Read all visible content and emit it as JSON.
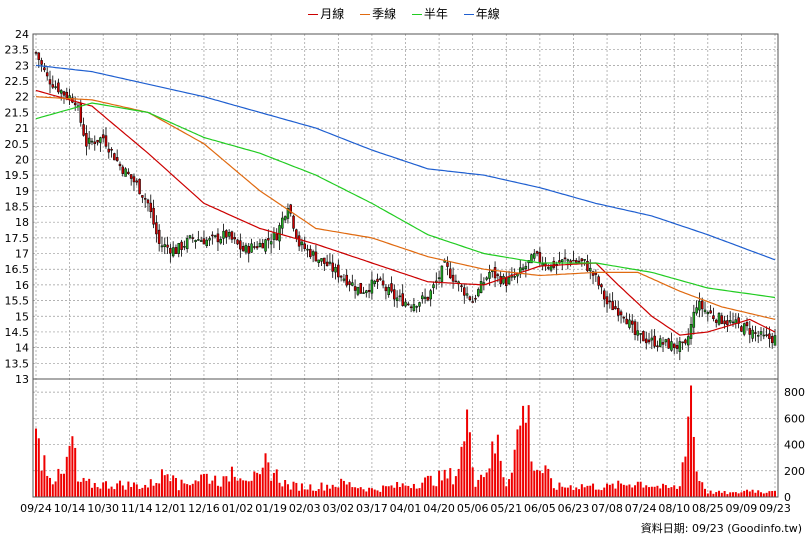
{
  "legend": [
    {
      "label": "月線",
      "color": "#cc0000"
    },
    {
      "label": "季線",
      "color": "#e06a10"
    },
    {
      "label": "半年",
      "color": "#22cc22"
    },
    {
      "label": "年線",
      "color": "#1f5fd0"
    }
  ],
  "source_label": "資料日期: 09/23  (Goodinfo.tw)",
  "colors": {
    "up_candle": "#22aa22",
    "down_candle": "#cc0000",
    "volume": "#ee0000",
    "grid": "#999999"
  },
  "chart_data": {
    "type": "candlestick",
    "price_axis": {
      "min": 13,
      "max": 24,
      "ticks": [
        "13",
        "13.5",
        "14",
        "14.5",
        "15",
        "15.5",
        "16",
        "16.5",
        "17",
        "17.5",
        "18",
        "18.5",
        "19",
        "19.5",
        "20",
        "20.5",
        "21",
        "21.5",
        "22",
        "22.5",
        "23",
        "23.5",
        "24"
      ]
    },
    "volume_axis": {
      "min": 0,
      "max": 900,
      "ticks": [
        "0",
        "200",
        "400",
        "600",
        "800"
      ]
    },
    "x_tick_labels": [
      "09/24",
      "10/14",
      "10/30",
      "11/14",
      "12/01",
      "12/16",
      "01/02",
      "01/19",
      "02/03",
      "03/02",
      "03/17",
      "04/01",
      "04/20",
      "05/06",
      "05/21",
      "06/05",
      "06/23",
      "07/08",
      "07/24",
      "08/10",
      "08/25",
      "09/09",
      "09/23"
    ],
    "close_keypoints": [
      [
        0,
        23.4
      ],
      [
        4,
        22.6
      ],
      [
        10,
        22.1
      ],
      [
        14,
        21.9
      ],
      [
        18,
        20.5
      ],
      [
        24,
        20.7
      ],
      [
        30,
        19.8
      ],
      [
        36,
        19.2
      ],
      [
        40,
        18.6
      ],
      [
        44,
        17.3
      ],
      [
        50,
        17.1
      ],
      [
        56,
        17.5
      ],
      [
        62,
        17.4
      ],
      [
        68,
        17.6
      ],
      [
        74,
        17.1
      ],
      [
        80,
        17.3
      ],
      [
        86,
        17.6
      ],
      [
        90,
        18.6
      ],
      [
        94,
        17.3
      ],
      [
        100,
        16.9
      ],
      [
        106,
        16.5
      ],
      [
        112,
        16.1
      ],
      [
        116,
        15.8
      ],
      [
        122,
        16.1
      ],
      [
        128,
        15.6
      ],
      [
        134,
        15.4
      ],
      [
        140,
        15.6
      ],
      [
        146,
        16.6
      ],
      [
        152,
        15.9
      ],
      [
        156,
        15.5
      ],
      [
        162,
        16.4
      ],
      [
        168,
        16.1
      ],
      [
        172,
        16.3
      ],
      [
        178,
        16.9
      ],
      [
        184,
        16.6
      ],
      [
        190,
        16.8
      ],
      [
        196,
        16.7
      ],
      [
        200,
        16.2
      ],
      [
        204,
        15.4
      ],
      [
        210,
        15.1
      ],
      [
        214,
        14.4
      ],
      [
        220,
        14.2
      ],
      [
        226,
        14.1
      ],
      [
        232,
        14.0
      ],
      [
        236,
        15.4
      ],
      [
        242,
        15.0
      ],
      [
        248,
        14.8
      ],
      [
        254,
        14.6
      ],
      [
        260,
        14.3
      ],
      [
        264,
        14.3
      ]
    ],
    "ma": {
      "月線": [
        [
          0,
          22.2
        ],
        [
          20,
          21.7
        ],
        [
          40,
          20.2
        ],
        [
          60,
          18.6
        ],
        [
          80,
          17.8
        ],
        [
          100,
          17.3
        ],
        [
          120,
          16.7
        ],
        [
          140,
          16.1
        ],
        [
          160,
          16.0
        ],
        [
          180,
          16.6
        ],
        [
          200,
          16.7
        ],
        [
          208,
          16.0
        ],
        [
          220,
          15.0
        ],
        [
          230,
          14.4
        ],
        [
          240,
          14.5
        ],
        [
          255,
          14.9
        ],
        [
          264,
          14.5
        ]
      ],
      "季線": [
        [
          0,
          22.0
        ],
        [
          20,
          21.9
        ],
        [
          40,
          21.5
        ],
        [
          60,
          20.5
        ],
        [
          80,
          19.0
        ],
        [
          100,
          17.8
        ],
        [
          120,
          17.5
        ],
        [
          140,
          16.9
        ],
        [
          160,
          16.5
        ],
        [
          180,
          16.3
        ],
        [
          200,
          16.4
        ],
        [
          215,
          16.4
        ],
        [
          230,
          15.8
        ],
        [
          245,
          15.3
        ],
        [
          264,
          14.9
        ]
      ],
      "半年": [
        [
          0,
          21.3
        ],
        [
          20,
          21.8
        ],
        [
          40,
          21.5
        ],
        [
          60,
          20.7
        ],
        [
          80,
          20.2
        ],
        [
          100,
          19.5
        ],
        [
          120,
          18.6
        ],
        [
          140,
          17.6
        ],
        [
          160,
          17.0
        ],
        [
          180,
          16.7
        ],
        [
          200,
          16.7
        ],
        [
          220,
          16.4
        ],
        [
          240,
          15.9
        ],
        [
          264,
          15.6
        ]
      ],
      "年線": [
        [
          0,
          23.0
        ],
        [
          20,
          22.8
        ],
        [
          40,
          22.4
        ],
        [
          60,
          22.0
        ],
        [
          80,
          21.5
        ],
        [
          100,
          21.0
        ],
        [
          120,
          20.3
        ],
        [
          140,
          19.7
        ],
        [
          160,
          19.5
        ],
        [
          180,
          19.1
        ],
        [
          200,
          18.6
        ],
        [
          220,
          18.2
        ],
        [
          240,
          17.6
        ],
        [
          264,
          16.8
        ]
      ]
    },
    "volume_keypoints": [
      [
        0,
        440
      ],
      [
        3,
        300
      ],
      [
        6,
        150
      ],
      [
        10,
        170
      ],
      [
        13,
        460
      ],
      [
        15,
        120
      ],
      [
        20,
        100
      ],
      [
        30,
        100
      ],
      [
        40,
        90
      ],
      [
        50,
        250
      ],
      [
        51,
        90
      ],
      [
        60,
        170
      ],
      [
        68,
        120
      ],
      [
        70,
        230
      ],
      [
        80,
        130
      ],
      [
        82,
        260
      ],
      [
        90,
        90
      ],
      [
        100,
        80
      ],
      [
        110,
        110
      ],
      [
        120,
        60
      ],
      [
        130,
        90
      ],
      [
        140,
        130
      ],
      [
        150,
        180
      ],
      [
        155,
        620
      ],
      [
        157,
        130
      ],
      [
        160,
        200
      ],
      [
        165,
        420
      ],
      [
        168,
        100
      ],
      [
        175,
        760
      ],
      [
        178,
        240
      ],
      [
        182,
        200
      ],
      [
        185,
        80
      ],
      [
        195,
        90
      ],
      [
        204,
        80
      ],
      [
        210,
        100
      ],
      [
        215,
        120
      ],
      [
        225,
        70
      ],
      [
        230,
        80
      ],
      [
        234,
        880
      ],
      [
        236,
        200
      ],
      [
        240,
        40
      ],
      [
        250,
        30
      ],
      [
        255,
        60
      ],
      [
        260,
        40
      ],
      [
        264,
        70
      ]
    ]
  }
}
